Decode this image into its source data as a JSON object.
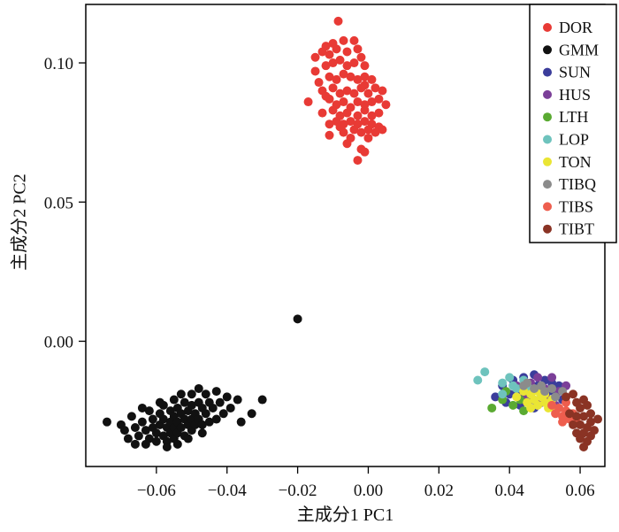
{
  "chart_data": {
    "type": "scatter",
    "xlabel": "主成分1 PC1",
    "ylabel": "主成分2 PC2",
    "xlim": [
      -0.08,
      0.067
    ],
    "ylim": [
      -0.045,
      0.121
    ],
    "x_ticks": [
      -0.06,
      -0.04,
      -0.02,
      0.0,
      0.02,
      0.04,
      0.06
    ],
    "x_tick_labels": [
      "−0.06",
      "−0.04",
      "−0.02",
      "0.00",
      "0.02",
      "0.04",
      "0.06"
    ],
    "y_ticks": [
      0.0,
      0.05,
      0.1
    ],
    "y_tick_labels": [
      "0.00",
      "0.05",
      "0.10"
    ],
    "legend_position": "top-right",
    "series": [
      {
        "name": "DOR",
        "color": "#e83a35",
        "points": [
          [
            -0.0085,
            0.115
          ],
          [
            -0.012,
            0.106
          ],
          [
            -0.01,
            0.107
          ],
          [
            -0.007,
            0.108
          ],
          [
            -0.004,
            0.108
          ],
          [
            -0.015,
            0.102
          ],
          [
            -0.013,
            0.104
          ],
          [
            -0.011,
            0.103
          ],
          [
            -0.009,
            0.105
          ],
          [
            -0.006,
            0.104
          ],
          [
            -0.003,
            0.105
          ],
          [
            -0.002,
            0.102
          ],
          [
            -0.015,
            0.097
          ],
          [
            -0.012,
            0.099
          ],
          [
            -0.01,
            0.1
          ],
          [
            -0.008,
            0.101
          ],
          [
            -0.006,
            0.099
          ],
          [
            -0.004,
            0.1
          ],
          [
            -0.001,
            0.099
          ],
          [
            -0.014,
            0.093
          ],
          [
            -0.011,
            0.095
          ],
          [
            -0.009,
            0.094
          ],
          [
            -0.007,
            0.096
          ],
          [
            -0.005,
            0.095
          ],
          [
            -0.003,
            0.094
          ],
          [
            -0.001,
            0.095
          ],
          [
            0.001,
            0.094
          ],
          [
            -0.013,
            0.09
          ],
          [
            -0.01,
            0.091
          ],
          [
            -0.008,
            0.089
          ],
          [
            -0.006,
            0.09
          ],
          [
            -0.004,
            0.089
          ],
          [
            -0.002,
            0.091
          ],
          [
            0.0,
            0.089
          ],
          [
            0.002,
            0.091
          ],
          [
            0.004,
            0.09
          ],
          [
            -0.017,
            0.086
          ],
          [
            -0.011,
            0.087
          ],
          [
            -0.009,
            0.085
          ],
          [
            -0.007,
            0.086
          ],
          [
            -0.005,
            0.084
          ],
          [
            -0.003,
            0.086
          ],
          [
            -0.001,
            0.085
          ],
          [
            0.001,
            0.086
          ],
          [
            0.003,
            0.087
          ],
          [
            0.005,
            0.085
          ],
          [
            -0.013,
            0.082
          ],
          [
            -0.01,
            0.083
          ],
          [
            -0.008,
            0.081
          ],
          [
            -0.006,
            0.082
          ],
          [
            -0.003,
            0.081
          ],
          [
            -0.001,
            0.083
          ],
          [
            0.001,
            0.081
          ],
          [
            0.003,
            0.082
          ],
          [
            -0.011,
            0.078
          ],
          [
            -0.009,
            0.079
          ],
          [
            -0.007,
            0.078
          ],
          [
            -0.005,
            0.079
          ],
          [
            -0.003,
            0.078
          ],
          [
            -0.001,
            0.079
          ],
          [
            0.001,
            0.078
          ],
          [
            0.003,
            0.077
          ],
          [
            -0.007,
            0.075
          ],
          [
            -0.004,
            0.076
          ],
          [
            -0.002,
            0.075
          ],
          [
            0.0,
            0.076
          ],
          [
            0.002,
            0.075
          ],
          [
            0.004,
            0.076
          ],
          [
            -0.011,
            0.074
          ],
          [
            -0.005,
            0.073
          ],
          [
            0.0,
            0.073
          ],
          [
            -0.006,
            0.071
          ],
          [
            -0.002,
            0.069
          ],
          [
            -0.001,
            0.068
          ],
          [
            -0.003,
            0.065
          ],
          [
            -0.008,
            0.077
          ],
          [
            -0.001,
            0.092
          ],
          [
            -0.012,
            0.088
          ]
        ]
      },
      {
        "name": "GMM",
        "color": "#111111",
        "points": [
          [
            -0.02,
            0.008
          ],
          [
            -0.074,
            -0.029
          ],
          [
            -0.07,
            -0.03
          ],
          [
            -0.069,
            -0.032
          ],
          [
            -0.067,
            -0.027
          ],
          [
            -0.066,
            -0.031
          ],
          [
            -0.065,
            -0.034
          ],
          [
            -0.064,
            -0.029
          ],
          [
            -0.063,
            -0.032
          ],
          [
            -0.062,
            -0.025
          ],
          [
            -0.062,
            -0.035
          ],
          [
            -0.061,
            -0.028
          ],
          [
            -0.061,
            -0.031
          ],
          [
            -0.06,
            -0.033
          ],
          [
            -0.06,
            -0.036
          ],
          [
            -0.059,
            -0.026
          ],
          [
            -0.059,
            -0.03
          ],
          [
            -0.058,
            -0.023
          ],
          [
            -0.058,
            -0.028
          ],
          [
            -0.058,
            -0.034
          ],
          [
            -0.057,
            -0.031
          ],
          [
            -0.057,
            -0.036
          ],
          [
            -0.056,
            -0.025
          ],
          [
            -0.056,
            -0.029
          ],
          [
            -0.056,
            -0.033
          ],
          [
            -0.055,
            -0.021
          ],
          [
            -0.055,
            -0.027
          ],
          [
            -0.055,
            -0.031
          ],
          [
            -0.055,
            -0.035
          ],
          [
            -0.054,
            -0.024
          ],
          [
            -0.054,
            -0.029
          ],
          [
            -0.054,
            -0.033
          ],
          [
            -0.053,
            -0.019
          ],
          [
            -0.053,
            -0.026
          ],
          [
            -0.053,
            -0.031
          ],
          [
            -0.052,
            -0.022
          ],
          [
            -0.052,
            -0.028
          ],
          [
            -0.052,
            -0.034
          ],
          [
            -0.051,
            -0.025
          ],
          [
            -0.051,
            -0.03
          ],
          [
            -0.05,
            -0.019
          ],
          [
            -0.05,
            -0.023
          ],
          [
            -0.05,
            -0.028
          ],
          [
            -0.05,
            -0.032
          ],
          [
            -0.049,
            -0.026
          ],
          [
            -0.049,
            -0.03
          ],
          [
            -0.048,
            -0.017
          ],
          [
            -0.048,
            -0.022
          ],
          [
            -0.048,
            -0.028
          ],
          [
            -0.047,
            -0.024
          ],
          [
            -0.047,
            -0.03
          ],
          [
            -0.046,
            -0.019
          ],
          [
            -0.046,
            -0.026
          ],
          [
            -0.045,
            -0.022
          ],
          [
            -0.045,
            -0.029
          ],
          [
            -0.044,
            -0.024
          ],
          [
            -0.043,
            -0.018
          ],
          [
            -0.043,
            -0.028
          ],
          [
            -0.042,
            -0.022
          ],
          [
            -0.041,
            -0.026
          ],
          [
            -0.04,
            -0.02
          ],
          [
            -0.039,
            -0.024
          ],
          [
            -0.037,
            -0.021
          ],
          [
            -0.036,
            -0.029
          ],
          [
            -0.033,
            -0.026
          ],
          [
            -0.03,
            -0.021
          ],
          [
            -0.064,
            -0.024
          ],
          [
            -0.059,
            -0.022
          ],
          [
            -0.054,
            -0.037
          ],
          [
            -0.047,
            -0.033
          ],
          [
            -0.068,
            -0.035
          ],
          [
            -0.066,
            -0.037
          ],
          [
            -0.057,
            -0.038
          ],
          [
            -0.051,
            -0.035
          ],
          [
            -0.063,
            -0.037
          ]
        ]
      },
      {
        "name": "SUN",
        "color": "#3b3d9b",
        "points": [
          [
            0.036,
            -0.02
          ],
          [
            0.038,
            -0.016
          ],
          [
            0.039,
            -0.022
          ],
          [
            0.041,
            -0.014
          ],
          [
            0.042,
            -0.018
          ],
          [
            0.043,
            -0.023
          ],
          [
            0.044,
            -0.013
          ],
          [
            0.045,
            -0.017
          ],
          [
            0.046,
            -0.021
          ],
          [
            0.047,
            -0.012
          ],
          [
            0.048,
            -0.016
          ],
          [
            0.049,
            -0.02
          ],
          [
            0.05,
            -0.014
          ],
          [
            0.051,
            -0.018
          ],
          [
            0.052,
            -0.015
          ],
          [
            0.053,
            -0.019
          ],
          [
            0.054,
            -0.016
          ],
          [
            0.055,
            -0.021
          ],
          [
            0.04,
            -0.019
          ],
          [
            0.047,
            -0.024
          ]
        ]
      },
      {
        "name": "HUS",
        "color": "#7b3f98",
        "points": [
          [
            0.042,
            -0.016
          ],
          [
            0.044,
            -0.02
          ],
          [
            0.046,
            -0.015
          ],
          [
            0.048,
            -0.013
          ],
          [
            0.05,
            -0.017
          ],
          [
            0.051,
            -0.021
          ],
          [
            0.052,
            -0.013
          ],
          [
            0.054,
            -0.018
          ],
          [
            0.056,
            -0.016
          ],
          [
            0.045,
            -0.022
          ],
          [
            0.049,
            -0.022
          ],
          [
            0.053,
            -0.023
          ]
        ]
      },
      {
        "name": "LTH",
        "color": "#5aaa32",
        "points": [
          [
            0.035,
            -0.024
          ],
          [
            0.038,
            -0.021
          ],
          [
            0.041,
            -0.023
          ],
          [
            0.044,
            -0.025
          ],
          [
            0.039,
            -0.018
          ],
          [
            0.046,
            -0.019
          ],
          [
            0.043,
            -0.021
          ]
        ]
      },
      {
        "name": "LOP",
        "color": "#6ec3bd",
        "points": [
          [
            0.031,
            -0.014
          ],
          [
            0.033,
            -0.011
          ],
          [
            0.038,
            -0.015
          ],
          [
            0.04,
            -0.013
          ],
          [
            0.042,
            -0.017
          ],
          [
            0.044,
            -0.014
          ],
          [
            0.046,
            -0.018
          ],
          [
            0.038,
            -0.019
          ],
          [
            0.041,
            -0.016
          ],
          [
            0.045,
            -0.016
          ]
        ]
      },
      {
        "name": "TON",
        "color": "#eae534",
        "points": [
          [
            0.042,
            -0.02
          ],
          [
            0.044,
            -0.018
          ],
          [
            0.045,
            -0.022
          ],
          [
            0.046,
            -0.019
          ],
          [
            0.047,
            -0.021
          ],
          [
            0.048,
            -0.018
          ],
          [
            0.048,
            -0.023
          ],
          [
            0.049,
            -0.02
          ],
          [
            0.05,
            -0.022
          ],
          [
            0.05,
            -0.019
          ],
          [
            0.051,
            -0.024
          ],
          [
            0.052,
            -0.021
          ],
          [
            0.046,
            -0.024
          ],
          [
            0.053,
            -0.025
          ]
        ]
      },
      {
        "name": "TIBQ",
        "color": "#8b8b8b",
        "points": [
          [
            0.045,
            -0.015
          ],
          [
            0.047,
            -0.017
          ],
          [
            0.049,
            -0.016
          ],
          [
            0.05,
            -0.018
          ],
          [
            0.052,
            -0.017
          ],
          [
            0.053,
            -0.02
          ],
          [
            0.055,
            -0.018
          ],
          [
            0.044,
            -0.016
          ]
        ]
      },
      {
        "name": "TIBS",
        "color": "#ee5e4e",
        "points": [
          [
            0.052,
            -0.023
          ],
          [
            0.053,
            -0.026
          ],
          [
            0.054,
            -0.024
          ],
          [
            0.055,
            -0.027
          ],
          [
            0.056,
            -0.025
          ],
          [
            0.057,
            -0.028
          ],
          [
            0.058,
            -0.026
          ],
          [
            0.056,
            -0.022
          ],
          [
            0.059,
            -0.029
          ],
          [
            0.055,
            -0.029
          ]
        ]
      },
      {
        "name": "TIBT",
        "color": "#8a3324",
        "points": [
          [
            0.056,
            -0.02
          ],
          [
            0.058,
            -0.019
          ],
          [
            0.059,
            -0.022
          ],
          [
            0.06,
            -0.024
          ],
          [
            0.061,
            -0.021
          ],
          [
            0.062,
            -0.023
          ],
          [
            0.063,
            -0.026
          ],
          [
            0.057,
            -0.026
          ],
          [
            0.059,
            -0.027
          ],
          [
            0.061,
            -0.027
          ],
          [
            0.063,
            -0.029
          ],
          [
            0.058,
            -0.03
          ],
          [
            0.06,
            -0.03
          ],
          [
            0.062,
            -0.031
          ],
          [
            0.064,
            -0.032
          ],
          [
            0.059,
            -0.033
          ],
          [
            0.061,
            -0.033
          ],
          [
            0.063,
            -0.034
          ],
          [
            0.06,
            -0.035
          ],
          [
            0.062,
            -0.036
          ],
          [
            0.061,
            -0.038
          ],
          [
            0.065,
            -0.028
          ]
        ]
      }
    ]
  }
}
